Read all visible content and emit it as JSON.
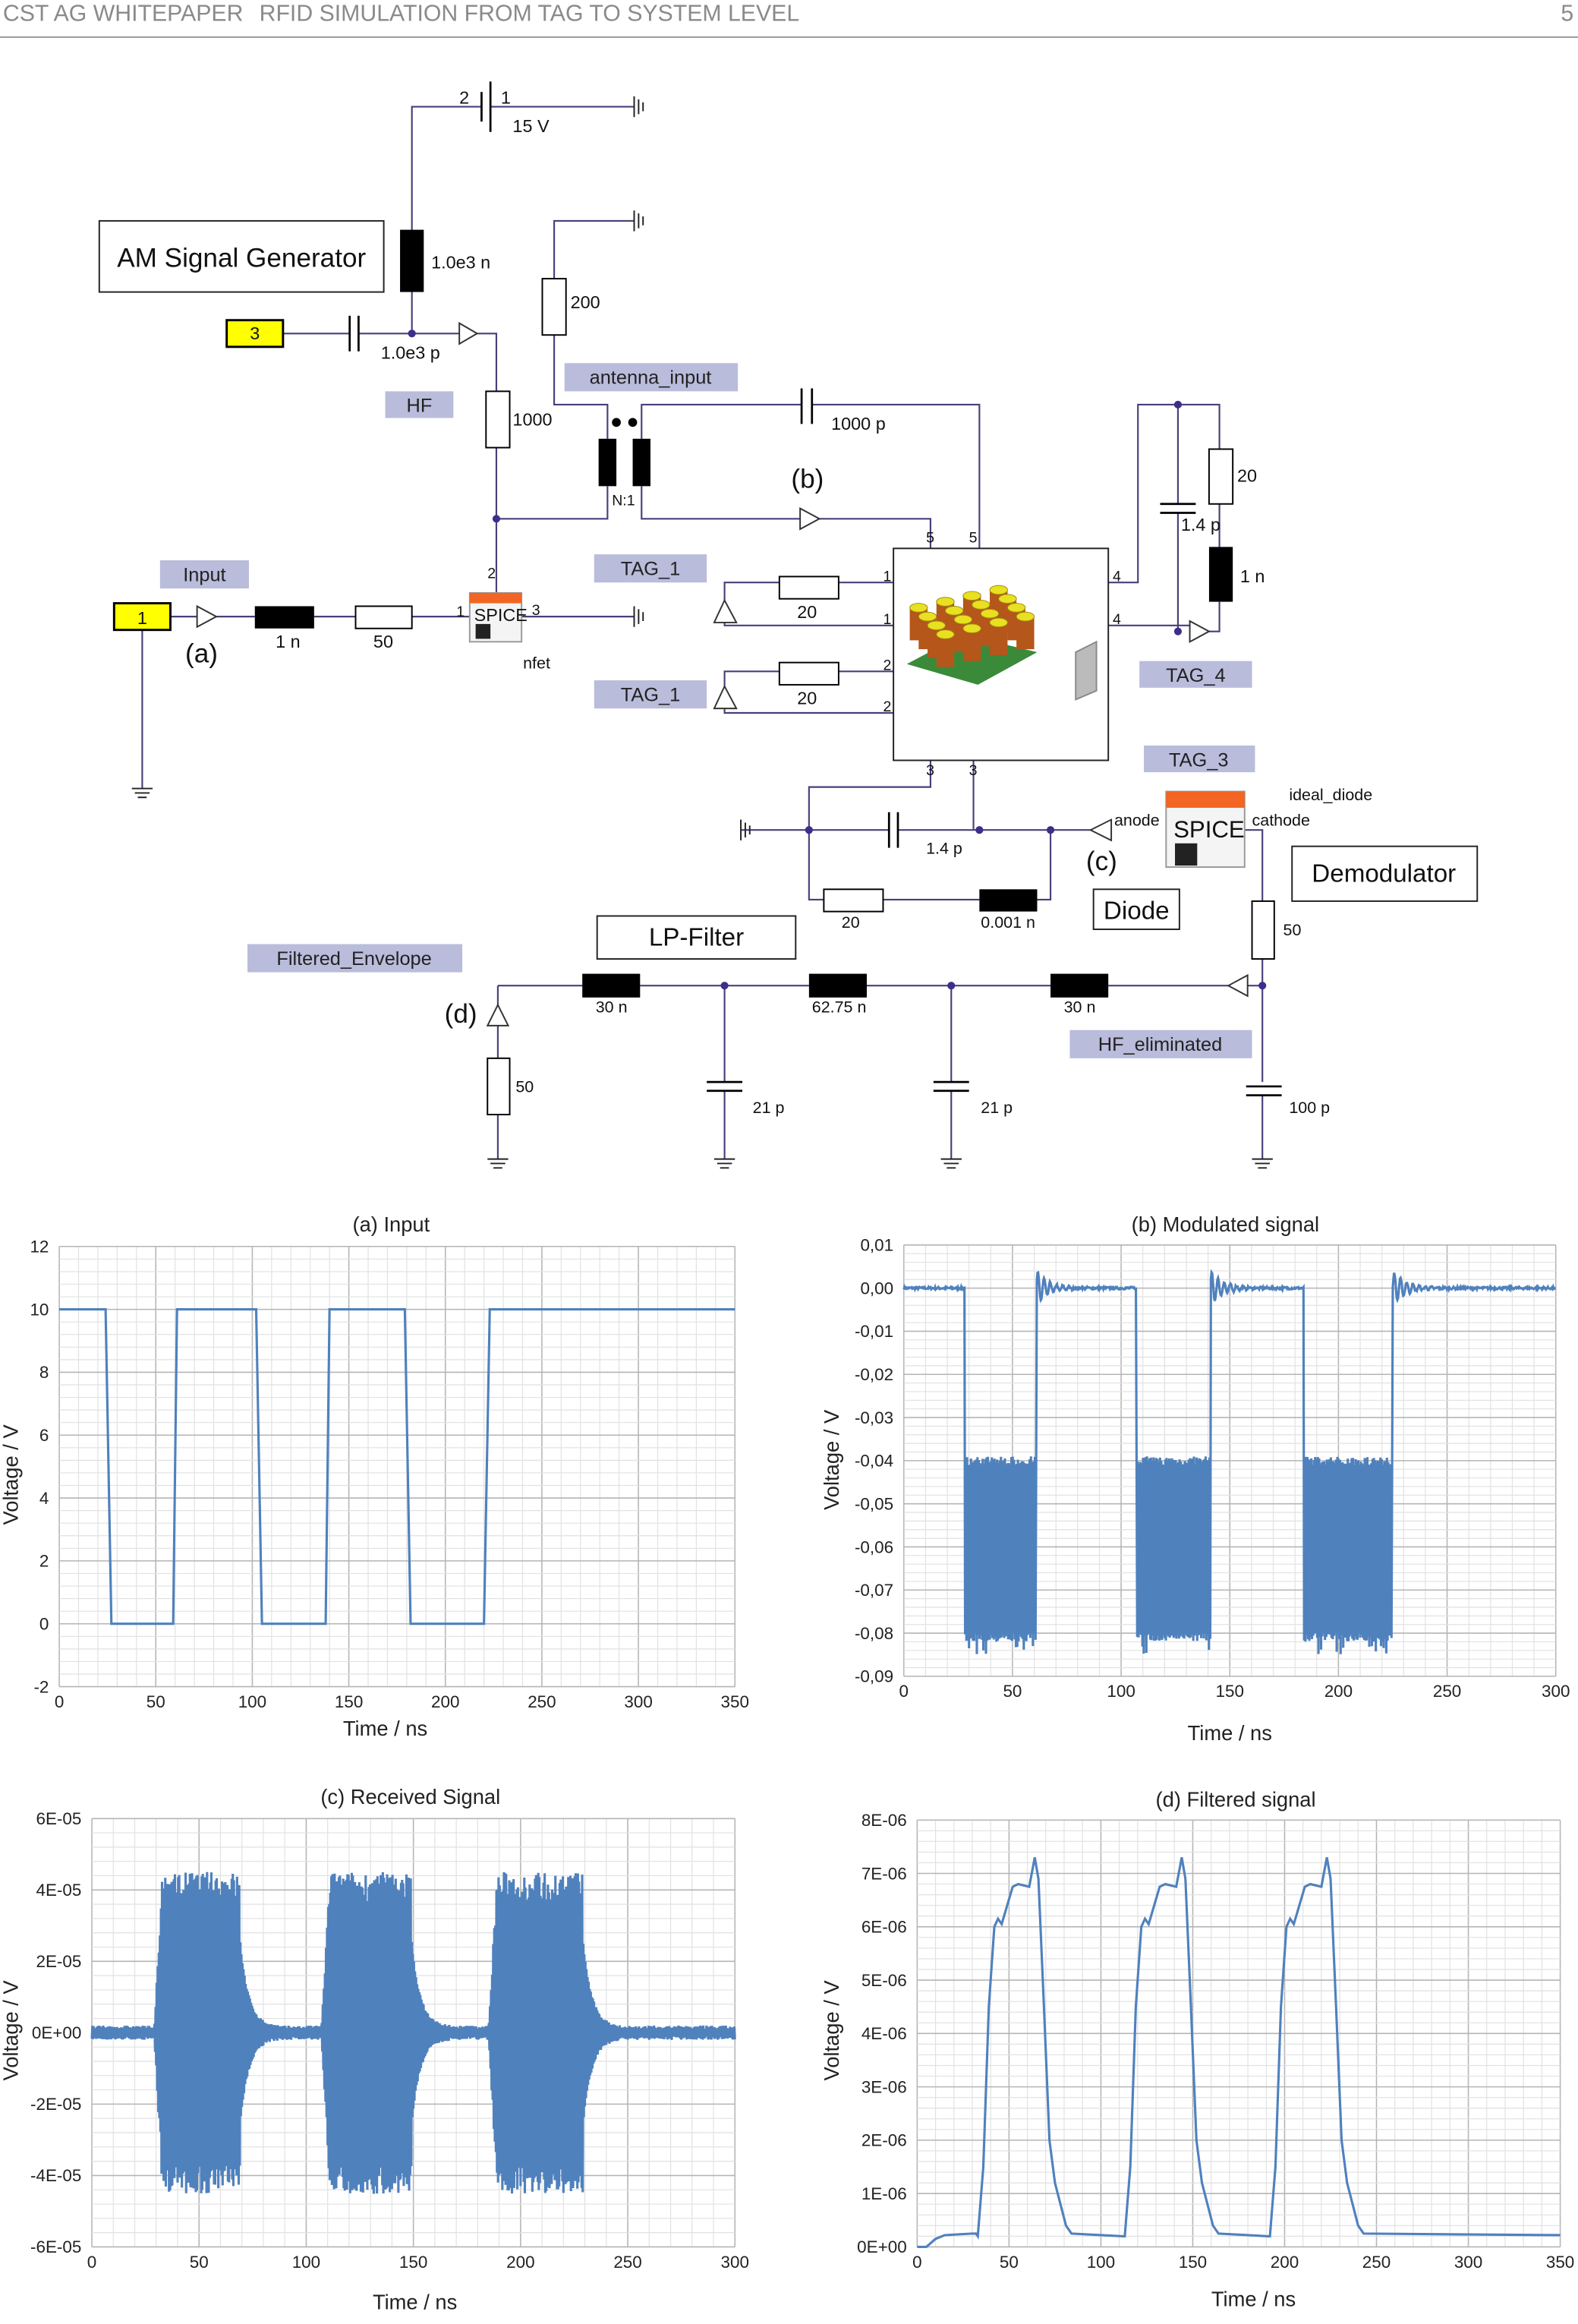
{
  "header": {
    "left": "CST AG WHITEPAPER",
    "title": "RFID SIMULATION FROM TAG TO SYSTEM LEVEL",
    "page": "5"
  },
  "schematic": {
    "blocks": {
      "am_generator": "AM Signal Generator",
      "lp_filter": "LP-Filter",
      "diode": "Diode",
      "demodulator": "Demodulator",
      "spice_nfet": "SPICE",
      "spice_diode": "SPICE"
    },
    "tags": {
      "hf": "HF",
      "antenna_input": "antenna_input",
      "input": "Input",
      "tag1_top": "TAG_1",
      "tag1_bottom": "TAG_1",
      "tag4": "TAG_4",
      "tag3": "TAG_3",
      "filtered_envelope": "Filtered_Envelope",
      "hf_eliminated": "HF_eliminated"
    },
    "ports": {
      "port3": "3",
      "port1": "1"
    },
    "markers": {
      "a": "(a)",
      "b": "(b)",
      "c": "(c)",
      "d": "(d)"
    },
    "values": {
      "battery": "15 V",
      "battery_pin2": "2",
      "battery_pin1": "1",
      "l_gen": "1.0e3 n",
      "c_gen": "1.0e3 p",
      "r200": "200",
      "r1000": "1000",
      "c1000p": "1000 p",
      "transformer": "N:1",
      "l_in": "1 n",
      "r_in": "50",
      "nfet": "nfet",
      "nfet_pin1": "1",
      "nfet_pin2": "2",
      "nfet_pin3": "3",
      "r20a": "20",
      "r20b": "20",
      "r20c": "20",
      "c14p_right": "1.4 p",
      "l1n_right": "1 n",
      "c14p_bottom": "1.4 p",
      "r20_bottom": "20",
      "l0001n": "0.001 n",
      "anode": "anode",
      "cathode": "cathode",
      "ideal_diode": "ideal_diode",
      "r50_demod": "50",
      "c100p": "100 p",
      "l30n_a": "30 n",
      "l6275n": "62.75 n",
      "l30n_b": "30 n",
      "c21p_a": "21 p",
      "c21p_b": "21 p",
      "r50_out": "50"
    },
    "pins": {
      "p5a": "5",
      "p5b": "5",
      "p1a": "1",
      "p1b": "1",
      "p2a": "2",
      "p2b": "2",
      "p4a": "4",
      "p4b": "4",
      "p3a": "3",
      "p3b": "3"
    },
    "wire_color": "#4a3f7a",
    "tag_color": "#b9bcdb",
    "port_color": "#ffff00",
    "spice_bar_color": "#f26522"
  },
  "chart_data": [
    {
      "type": "line",
      "title": "(a) Input",
      "xlabel": "Time / ns",
      "ylabel": "Voltage / V",
      "xlim": [
        0,
        350
      ],
      "ylim": [
        -2,
        12
      ],
      "grid": true,
      "color": "#4f81bd",
      "xticks": [
        "0",
        "50",
        "100",
        "150",
        "200",
        "250",
        "300",
        "350"
      ],
      "yticks": [
        "-2",
        "0",
        "2",
        "4",
        "6",
        "8",
        "10",
        "12"
      ],
      "x": [
        0,
        24,
        27,
        59,
        61,
        102,
        105,
        138,
        140,
        179,
        182,
        220,
        223,
        350
      ],
      "y": [
        10,
        10,
        0,
        0,
        10,
        10,
        0,
        0,
        10,
        10,
        0,
        0,
        10,
        10
      ]
    },
    {
      "type": "line",
      "title": "(b) Modulated signal",
      "xlabel": "Time / ns",
      "ylabel": "Voltage / V",
      "xlim": [
        0,
        300
      ],
      "ylim": [
        -0.09,
        0.01
      ],
      "grid": true,
      "color": "#4f81bd",
      "xticks": [
        "0",
        "50",
        "100",
        "150",
        "200",
        "250",
        "300"
      ],
      "yticks": [
        "-0,09",
        "-0,08",
        "-0,07",
        "-0,06",
        "-0,05",
        "-0,04",
        "-0,03",
        "-0,02",
        "-0,01",
        "0,00",
        "0,01"
      ],
      "baseline": 0,
      "bands": [
        {
          "x0": 28,
          "x1": 61,
          "low": -0.08,
          "high": -0.041
        },
        {
          "x0": 107,
          "x1": 141,
          "low": -0.08,
          "high": -0.041
        },
        {
          "x0": 184,
          "x1": 225,
          "low": -0.08,
          "high": -0.041
        }
      ]
    },
    {
      "type": "line",
      "title": "(c) Received Signal",
      "xlabel": "Time / ns",
      "ylabel": "Voltage / V",
      "xlim": [
        0,
        300
      ],
      "ylim": [
        -6e-05,
        6e-05
      ],
      "grid": true,
      "color": "#4f81bd",
      "xticks": [
        "0",
        "50",
        "100",
        "150",
        "200",
        "250",
        "300"
      ],
      "yticks": [
        "-6E-05",
        "-4E-05",
        "-2E-05",
        "0E+00",
        "2E-05",
        "4E-05",
        "6E-05"
      ],
      "bursts": [
        {
          "x0": 29,
          "x1": 69,
          "amplitude": 4.3e-05
        },
        {
          "x0": 107,
          "x1": 149,
          "amplitude": 4.3e-05
        },
        {
          "x0": 185,
          "x1": 229,
          "amplitude": 4.3e-05
        }
      ]
    },
    {
      "type": "line",
      "title": "(d) Filtered signal",
      "xlabel": "Time / ns",
      "ylabel": "Voltage / V",
      "xlim": [
        0,
        350
      ],
      "ylim": [
        0,
        8e-06
      ],
      "grid": true,
      "color": "#4f81bd",
      "xticks": [
        "0",
        "50",
        "100",
        "150",
        "200",
        "250",
        "300",
        "350"
      ],
      "yticks": [
        "0E+00",
        "1E-06",
        "2E-06",
        "3E-06",
        "4E-06",
        "5E-06",
        "6E-06",
        "7E-06",
        "8E-06"
      ],
      "x": [
        0,
        5,
        10,
        15,
        30,
        32,
        33,
        36,
        39,
        42,
        44,
        46,
        49,
        52,
        55,
        61,
        64,
        66,
        69,
        72,
        75,
        78,
        81,
        84,
        100,
        112,
        113,
        116,
        119,
        122,
        124,
        126,
        129,
        132,
        135,
        141,
        144,
        146,
        149,
        152,
        155,
        158,
        161,
        164,
        180,
        191,
        192,
        195,
        198,
        201,
        203,
        205,
        208,
        211,
        214,
        220,
        223,
        225,
        228,
        231,
        234,
        237,
        240,
        243,
        350
      ],
      "y": [
        0,
        0,
        1.5e-07,
        2.2e-07,
        2.5e-07,
        2.5e-07,
        2e-07,
        1.5e-06,
        4.5e-06,
        6e-06,
        6.15e-06,
        6.05e-06,
        6.4e-06,
        6.75e-06,
        6.8e-06,
        6.75e-06,
        7.3e-06,
        6.9e-06,
        4.5e-06,
        2e-06,
        1.2e-06,
        8e-07,
        4e-07,
        2.5e-07,
        2.2e-07,
        2e-07,
        2e-07,
        1.5e-06,
        4.5e-06,
        6e-06,
        6.15e-06,
        6.05e-06,
        6.4e-06,
        6.75e-06,
        6.8e-06,
        6.75e-06,
        7.3e-06,
        6.9e-06,
        4.5e-06,
        2e-06,
        1.2e-06,
        8e-07,
        4e-07,
        2.5e-07,
        2.2e-07,
        2e-07,
        2e-07,
        1.5e-06,
        4.5e-06,
        6e-06,
        6.15e-06,
        6.05e-06,
        6.4e-06,
        6.75e-06,
        6.8e-06,
        6.75e-06,
        7.3e-06,
        6.9e-06,
        4.5e-06,
        2e-06,
        1.2e-06,
        8e-07,
        4e-07,
        2.5e-07,
        2.2e-07
      ]
    }
  ]
}
